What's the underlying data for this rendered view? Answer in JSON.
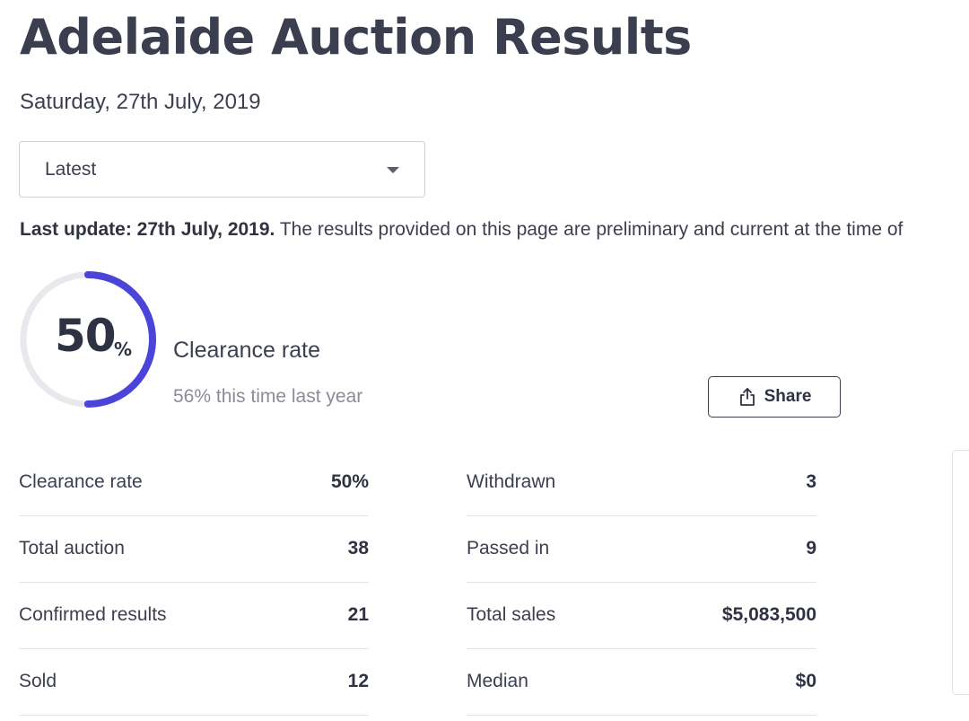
{
  "header": {
    "title": "Adelaide Auction Results",
    "date": "Saturday, 27th July, 2019"
  },
  "filter": {
    "selected": "Latest"
  },
  "update_notice": {
    "bold": "Last update: 27th July, 2019.",
    "text": " The results provided on this page are preliminary and current at the time of"
  },
  "clearance": {
    "rate_number": "50",
    "rate_symbol": "%",
    "rate_fraction": 0.5,
    "label": "Clearance rate",
    "last_year": "56% this time last year",
    "accent_color": "#4a44d8",
    "track_color": "#e8e9ed"
  },
  "share": {
    "label": "Share",
    "icon": "share-icon"
  },
  "stats_left": [
    {
      "label": "Clearance rate",
      "value": "50%"
    },
    {
      "label": "Total auction",
      "value": "38"
    },
    {
      "label": "Confirmed results",
      "value": "21"
    },
    {
      "label": "Sold",
      "value": "12"
    }
  ],
  "stats_right": [
    {
      "label": "Withdrawn",
      "value": "3"
    },
    {
      "label": "Passed in",
      "value": "9"
    },
    {
      "label": "Total sales",
      "value": "$5,083,500"
    },
    {
      "label": "Median",
      "value": "$0"
    }
  ]
}
